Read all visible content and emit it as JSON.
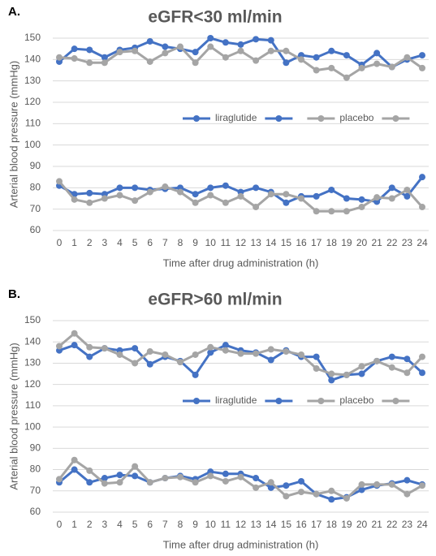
{
  "chart_data": [
    {
      "type": "line",
      "label": "A.",
      "title": "eGFR<30 ml/min",
      "xlabel": "Time after drug administration (h)",
      "ylabel": "Arterial blood pressure (mmHg)",
      "categories": [
        0,
        1,
        2,
        3,
        4,
        5,
        6,
        7,
        8,
        9,
        10,
        11,
        12,
        13,
        14,
        15,
        16,
        17,
        18,
        19,
        20,
        21,
        22,
        23,
        24
      ],
      "ylim": [
        60,
        150
      ],
      "yticks": [
        60,
        70,
        80,
        90,
        100,
        110,
        120,
        130,
        140,
        150
      ],
      "grid": true,
      "series": [
        {
          "name": "liraglutide",
          "color": "#4472c4",
          "values": [
            139,
            145,
            144.5,
            141,
            144.5,
            145.5,
            148.5,
            146,
            145,
            143.5,
            150,
            148,
            147,
            149.5,
            149,
            138.5,
            142,
            141,
            144,
            142,
            137.5,
            143,
            136.5,
            140,
            142
          ]
        },
        {
          "color": "#4472c4",
          "values": [
            81,
            77,
            77.5,
            77,
            80,
            80,
            79,
            79.5,
            80,
            77,
            80,
            81,
            78,
            80,
            78,
            73,
            76,
            76,
            79,
            75,
            74.5,
            73.5,
            80,
            76,
            85
          ]
        },
        {
          "name": "placebo",
          "color": "#a5a5a5",
          "values": [
            141,
            140.5,
            138.5,
            138.5,
            143.5,
            144,
            139,
            143,
            146,
            138.5,
            146,
            141,
            144,
            139.5,
            144,
            144,
            140,
            135,
            136,
            131.5,
            136,
            138,
            136.5,
            141,
            136
          ]
        },
        {
          "color": "#a5a5a5",
          "values": [
            83,
            74.5,
            73,
            75,
            76.5,
            74,
            78,
            80.5,
            78,
            73,
            76.5,
            73,
            76,
            71,
            77,
            77,
            75,
            69,
            69,
            69,
            71,
            75.5,
            75,
            79,
            71
          ]
        }
      ]
    },
    {
      "type": "line",
      "label": "B.",
      "title": "eGFR>60 ml/min",
      "xlabel": "Time after drug administration (h)",
      "ylabel": "Arterial blood pressure (mmHg)",
      "categories": [
        0,
        1,
        2,
        3,
        4,
        5,
        6,
        7,
        8,
        9,
        10,
        11,
        12,
        13,
        14,
        15,
        16,
        17,
        18,
        19,
        20,
        21,
        22,
        23,
        24
      ],
      "ylim": [
        60,
        150
      ],
      "yticks": [
        60,
        70,
        80,
        90,
        100,
        110,
        120,
        130,
        140,
        150
      ],
      "grid": true,
      "series": [
        {
          "name": "liraglutide",
          "color": "#4472c4",
          "values": [
            136,
            138.5,
            133,
            137,
            136,
            137,
            129.5,
            133,
            131,
            124.5,
            135,
            138.5,
            136,
            135,
            131.5,
            136,
            133,
            133,
            122,
            124.5,
            125,
            131,
            133,
            132,
            125.5
          ]
        },
        {
          "color": "#4472c4",
          "values": [
            74,
            80,
            74,
            76,
            77.5,
            77,
            74,
            76,
            77,
            75.5,
            79,
            78,
            78,
            76,
            71.5,
            72.5,
            74.5,
            68.5,
            66,
            67,
            70.5,
            72.5,
            73.5,
            75,
            73
          ]
        },
        {
          "name": "placebo",
          "color": "#a5a5a5",
          "values": [
            138,
            144,
            137.5,
            137,
            134,
            130,
            135.5,
            134,
            130.5,
            134,
            137.5,
            136,
            134.5,
            134.5,
            136.5,
            135.5,
            134,
            127.5,
            125,
            124.5,
            128.5,
            131,
            128,
            125.5,
            133
          ]
        },
        {
          "color": "#a5a5a5",
          "values": [
            75.5,
            84.5,
            79.5,
            73.5,
            74,
            81.5,
            74,
            76,
            76.5,
            74,
            77,
            74.5,
            76.5,
            71.5,
            74,
            67.5,
            69.5,
            68.5,
            70,
            66.5,
            73,
            73,
            73,
            68.5,
            72.5
          ]
        }
      ]
    }
  ]
}
